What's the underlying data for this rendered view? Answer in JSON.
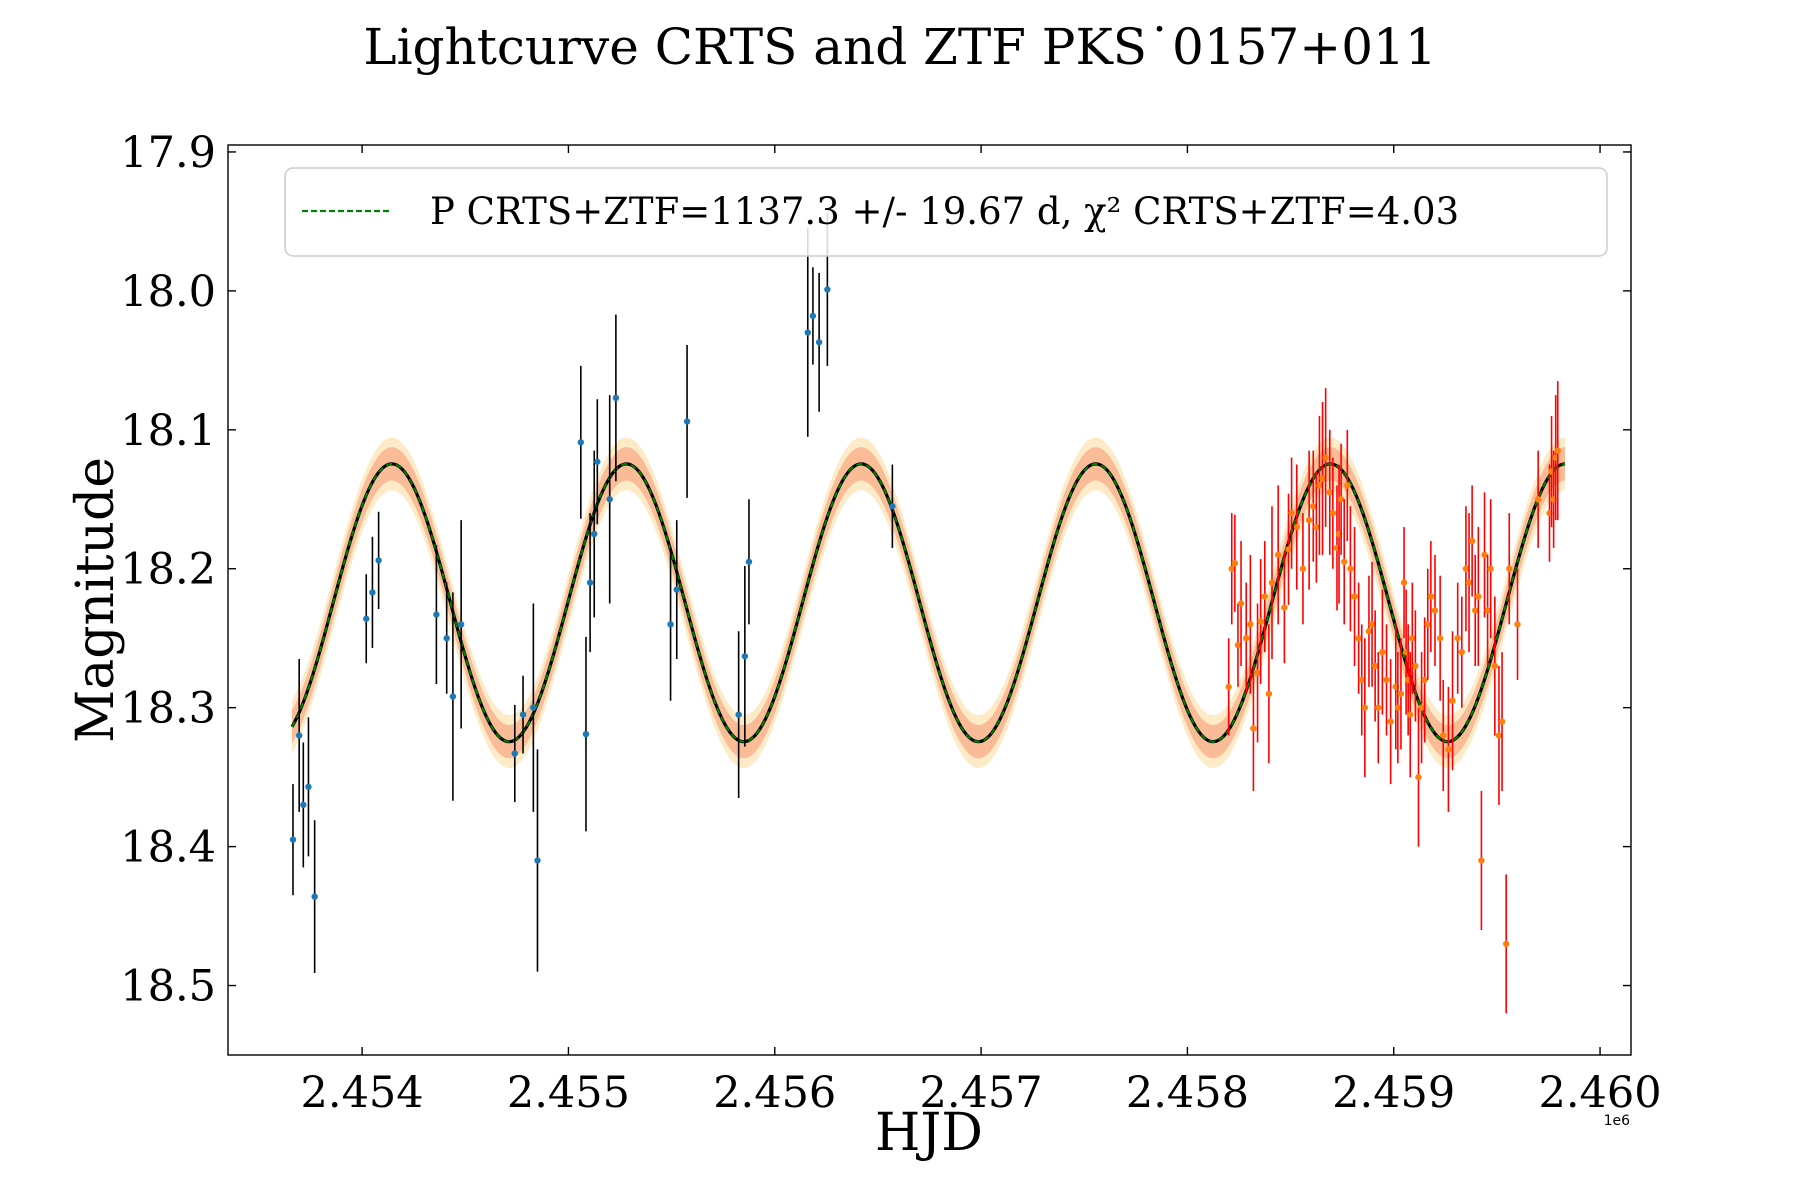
{
  "chart_data": {
    "type": "scatter",
    "title": "Lightcurve CRTS and ZTF PKS˙0157+011",
    "xlabel": "HJD",
    "ylabel": "Magnitude",
    "x_offset_label": "1e6",
    "xlim": [
      2453350,
      2460150
    ],
    "ylim": [
      18.55,
      17.895
    ],
    "y_inverted": true,
    "x_ticks": [
      2454000,
      2455000,
      2456000,
      2457000,
      2458000,
      2459000,
      2460000
    ],
    "x_tick_labels": [
      "2.454",
      "2.455",
      "2.456",
      "2.457",
      "2.458",
      "2.459",
      "2.460"
    ],
    "y_ticks": [
      17.9,
      18.0,
      18.1,
      18.2,
      18.3,
      18.4,
      18.5
    ],
    "y_tick_labels": [
      "17.9",
      "18.0",
      "18.1",
      "18.2",
      "18.3",
      "18.4",
      "18.5"
    ],
    "legend": {
      "position": "top",
      "line_label": "P CRTS+ZTF=1137.3 +/- 19.67 d, χ² CRTS+ZTF=4.03"
    },
    "colors": {
      "crts_point": "#1f77b4",
      "crts_errorbar": "#000000",
      "ztf_point": "#ff7f0e",
      "ztf_errorbar": "#ff0000",
      "model_line": "#000000",
      "model_dash": "#008000",
      "band_outer": "#fdebc8",
      "band_inner": "#f7b08a"
    },
    "model": {
      "name": "P CRTS+ZTF",
      "period_days": 1137.3,
      "period_error_days": 19.67,
      "chi2": 4.03,
      "mean_mag": 18.2245,
      "amplitude_mag": 0.1,
      "peak_hjd": 2454144,
      "x_start": 2453660,
      "x_end": 2459830,
      "band_outer_mag": 0.019,
      "band_inner_mag": 0.012
    },
    "series": [
      {
        "name": "CRTS",
        "x": [
          2453665,
          2453695,
          2453715,
          2453740,
          2453770,
          2454020,
          2454050,
          2454080,
          2454360,
          2454410,
          2454440,
          2454480,
          2454740,
          2454780,
          2454830,
          2454850,
          2455060,
          2455085,
          2455105,
          2455125,
          2455140,
          2455200,
          2455230,
          2455495,
          2455525,
          2455575,
          2455825,
          2455855,
          2455875,
          2456160,
          2456185,
          2456215,
          2456255,
          2456570
        ],
        "y": [
          18.395,
          18.32,
          18.37,
          18.357,
          18.436,
          18.236,
          18.217,
          18.194,
          18.233,
          18.25,
          18.292,
          18.24,
          18.333,
          18.305,
          18.3,
          18.41,
          18.109,
          18.319,
          18.21,
          18.175,
          18.123,
          18.15,
          18.077,
          18.24,
          18.215,
          18.094,
          18.305,
          18.263,
          18.195,
          18.03,
          18.018,
          18.037,
          17.999,
          18.155
        ],
        "err": [
          0.04,
          0.055,
          0.045,
          0.05,
          0.055,
          0.032,
          0.04,
          0.035,
          0.05,
          0.04,
          0.075,
          0.075,
          0.035,
          0.028,
          0.075,
          0.08,
          0.055,
          0.07,
          0.05,
          0.06,
          0.045,
          0.075,
          0.06,
          0.055,
          0.05,
          0.055,
          0.06,
          0.065,
          0.045,
          0.075,
          0.035,
          0.05,
          0.055,
          0.03
        ]
      },
      {
        "name": "ZTF",
        "x": [
          2458200,
          2458215,
          2458230,
          2458245,
          2458260,
          2458285,
          2458305,
          2458320,
          2458340,
          2458355,
          2458375,
          2458395,
          2458410,
          2458440,
          2458470,
          2458490,
          2458505,
          2458530,
          2458560,
          2458590,
          2458610,
          2458625,
          2458640,
          2458655,
          2458670,
          2458690,
          2458705,
          2458725,
          2458735,
          2458745,
          2458760,
          2458775,
          2458790,
          2458810,
          2458830,
          2458845,
          2458860,
          2458880,
          2458895,
          2458910,
          2458925,
          2458945,
          2458965,
          2458985,
          2459010,
          2459020,
          2459035,
          2459050,
          2459060,
          2459070,
          2459080,
          2459090,
          2459105,
          2459120,
          2459135,
          2459150,
          2459165,
          2459180,
          2459200,
          2459225,
          2459240,
          2459265,
          2459285,
          2459310,
          2459330,
          2459350,
          2459365,
          2459380,
          2459395,
          2459410,
          2459425,
          2459440,
          2459455,
          2459470,
          2459490,
          2459510,
          2459525,
          2459545,
          2459560,
          2459600,
          2459700,
          2459755,
          2459765,
          2459775,
          2459785,
          2459795
        ],
        "y": [
          18.285,
          18.2,
          18.196,
          18.255,
          18.225,
          18.25,
          18.24,
          18.315,
          18.275,
          18.238,
          18.22,
          18.29,
          18.21,
          18.19,
          18.228,
          18.186,
          18.16,
          18.17,
          18.2,
          18.165,
          18.155,
          18.17,
          18.14,
          18.135,
          18.12,
          18.145,
          18.16,
          18.185,
          18.175,
          18.15,
          18.195,
          18.14,
          18.2,
          18.22,
          18.25,
          18.28,
          18.3,
          18.245,
          18.24,
          18.27,
          18.3,
          18.26,
          18.28,
          18.31,
          18.285,
          18.3,
          18.29,
          18.21,
          18.26,
          18.28,
          18.305,
          18.25,
          18.27,
          18.35,
          18.3,
          18.28,
          18.24,
          18.22,
          18.23,
          18.25,
          18.32,
          18.33,
          18.295,
          18.25,
          18.26,
          18.2,
          18.21,
          18.18,
          18.23,
          18.22,
          18.41,
          18.19,
          18.23,
          18.2,
          18.27,
          18.32,
          18.31,
          18.47,
          18.2,
          18.24,
          18.15,
          18.16,
          18.13,
          18.15,
          18.12,
          18.115
        ],
        "err": [
          0.035,
          0.04,
          0.035,
          0.03,
          0.045,
          0.04,
          0.05,
          0.045,
          0.05,
          0.045,
          0.04,
          0.05,
          0.055,
          0.05,
          0.04,
          0.04,
          0.04,
          0.045,
          0.04,
          0.05,
          0.04,
          0.04,
          0.05,
          0.055,
          0.05,
          0.045,
          0.04,
          0.045,
          0.05,
          0.04,
          0.045,
          0.04,
          0.045,
          0.05,
          0.04,
          0.04,
          0.05,
          0.04,
          0.045,
          0.04,
          0.04,
          0.045,
          0.04,
          0.045,
          0.045,
          0.04,
          0.04,
          0.04,
          0.045,
          0.04,
          0.045,
          0.04,
          0.04,
          0.05,
          0.04,
          0.045,
          0.04,
          0.04,
          0.04,
          0.045,
          0.04,
          0.045,
          0.05,
          0.04,
          0.04,
          0.045,
          0.05,
          0.04,
          0.04,
          0.05,
          0.05,
          0.045,
          0.04,
          0.05,
          0.05,
          0.05,
          0.05,
          0.05,
          0.04,
          0.04,
          0.035,
          0.035,
          0.04,
          0.035,
          0.045,
          0.05
        ]
      }
    ]
  }
}
